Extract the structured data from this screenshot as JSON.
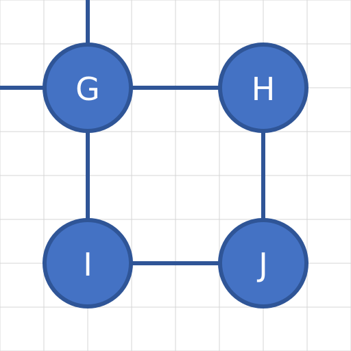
{
  "diagram": {
    "type": "graph",
    "colors": {
      "node_fill": "#4472c4",
      "node_stroke": "#2f5597",
      "edge": "#2f5597",
      "grid": "#d4d4d4",
      "background": "#ffffff",
      "label": "#ffffff"
    },
    "nodes": [
      {
        "id": "G",
        "label": "G"
      },
      {
        "id": "H",
        "label": "H"
      },
      {
        "id": "I",
        "label": "I"
      },
      {
        "id": "J",
        "label": "J"
      }
    ],
    "edges": [
      {
        "from": "G",
        "to": "H"
      },
      {
        "from": "G",
        "to": "I"
      },
      {
        "from": "H",
        "to": "J"
      },
      {
        "from": "I",
        "to": "J"
      },
      {
        "from": "G",
        "to": "offscreen-top"
      },
      {
        "from": "G",
        "to": "offscreen-left"
      }
    ]
  }
}
